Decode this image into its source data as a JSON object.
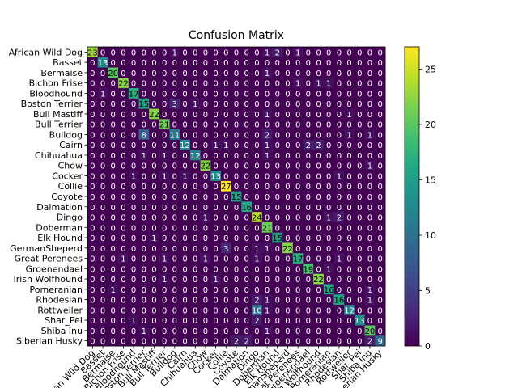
{
  "chart_data": {
    "type": "heatmap",
    "title": "Confusion Matrix",
    "xlabel": "",
    "ylabel": "",
    "colormap": "viridis",
    "vmin": 0,
    "vmax": 27,
    "colorbar_ticks": [
      0,
      5,
      10,
      15,
      20,
      25
    ],
    "labels": [
      "African Wild Dog",
      "Basset",
      "Bermaise",
      "Bichon Frise",
      "Bloodhound",
      "Boston Terrier",
      "Bull Mastiff",
      "Bull Terrier",
      "Bulldog",
      "Cairn",
      "Chihuahua",
      "Chow",
      "Cocker",
      "Collie",
      "Coyote",
      "Dalmation",
      "Dingo",
      "Doberman",
      "Elk Hound",
      "GermanSheperd",
      "Great Perenees",
      "Groenendael",
      "Irish Wolfhound",
      "Pomeranian",
      "Rhodesian",
      "Rottweiler",
      "Shar_Pei",
      "Shiba Inu",
      "Siberian Husky"
    ],
    "matrix": [
      [
        23,
        0,
        0,
        0,
        0,
        0,
        0,
        0,
        1,
        0,
        0,
        0,
        0,
        0,
        0,
        0,
        0,
        1,
        2,
        0,
        1,
        0,
        0,
        0,
        0,
        0,
        0,
        0,
        0
      ],
      [
        0,
        13,
        0,
        0,
        0,
        0,
        0,
        0,
        0,
        0,
        0,
        0,
        0,
        0,
        0,
        0,
        0,
        0,
        0,
        0,
        0,
        0,
        0,
        0,
        0,
        0,
        0,
        0,
        0
      ],
      [
        0,
        0,
        20,
        0,
        0,
        0,
        0,
        0,
        0,
        0,
        0,
        0,
        0,
        0,
        0,
        0,
        0,
        1,
        0,
        0,
        0,
        0,
        0,
        0,
        0,
        0,
        0,
        0,
        0
      ],
      [
        0,
        0,
        0,
        22,
        0,
        0,
        0,
        0,
        0,
        0,
        0,
        0,
        0,
        0,
        0,
        0,
        0,
        0,
        0,
        0,
        1,
        0,
        1,
        1,
        0,
        0,
        0,
        0,
        0
      ],
      [
        0,
        1,
        0,
        0,
        17,
        0,
        0,
        0,
        0,
        0,
        0,
        0,
        0,
        0,
        0,
        0,
        0,
        0,
        0,
        0,
        0,
        0,
        0,
        0,
        0,
        0,
        0,
        0,
        0
      ],
      [
        0,
        0,
        0,
        0,
        0,
        15,
        0,
        0,
        3,
        0,
        1,
        0,
        0,
        0,
        0,
        0,
        0,
        0,
        0,
        0,
        0,
        0,
        0,
        0,
        0,
        0,
        0,
        0,
        0
      ],
      [
        0,
        0,
        0,
        0,
        0,
        0,
        22,
        0,
        0,
        0,
        0,
        0,
        0,
        0,
        0,
        0,
        0,
        1,
        0,
        0,
        0,
        0,
        0,
        0,
        0,
        1,
        0,
        0,
        0
      ],
      [
        0,
        0,
        0,
        0,
        0,
        0,
        0,
        21,
        0,
        0,
        0,
        0,
        0,
        0,
        0,
        0,
        0,
        0,
        0,
        0,
        0,
        0,
        0,
        0,
        0,
        0,
        0,
        0,
        0
      ],
      [
        0,
        0,
        0,
        0,
        0,
        8,
        0,
        0,
        11,
        0,
        0,
        0,
        0,
        0,
        0,
        0,
        0,
        2,
        0,
        0,
        0,
        0,
        0,
        0,
        0,
        1,
        0,
        1,
        0
      ],
      [
        0,
        0,
        0,
        0,
        0,
        0,
        0,
        0,
        0,
        12,
        0,
        0,
        1,
        1,
        0,
        0,
        0,
        1,
        0,
        0,
        0,
        2,
        2,
        0,
        0,
        0,
        0,
        0,
        0
      ],
      [
        0,
        0,
        0,
        0,
        0,
        1,
        0,
        1,
        0,
        0,
        12,
        0,
        0,
        0,
        0,
        0,
        0,
        1,
        0,
        0,
        0,
        0,
        0,
        0,
        0,
        0,
        0,
        0,
        0
      ],
      [
        0,
        0,
        0,
        0,
        0,
        0,
        0,
        0,
        0,
        0,
        0,
        22,
        0,
        0,
        0,
        0,
        0,
        0,
        0,
        0,
        0,
        0,
        0,
        0,
        0,
        0,
        0,
        1,
        0
      ],
      [
        0,
        0,
        0,
        0,
        1,
        0,
        0,
        1,
        0,
        1,
        0,
        0,
        13,
        0,
        0,
        0,
        0,
        0,
        0,
        0,
        0,
        0,
        0,
        0,
        1,
        0,
        0,
        0,
        0
      ],
      [
        0,
        0,
        0,
        0,
        0,
        0,
        0,
        0,
        0,
        0,
        0,
        0,
        0,
        27,
        0,
        0,
        0,
        0,
        0,
        0,
        0,
        0,
        0,
        0,
        0,
        0,
        0,
        0,
        0
      ],
      [
        0,
        0,
        0,
        0,
        0,
        0,
        0,
        0,
        0,
        0,
        0,
        0,
        0,
        0,
        15,
        0,
        0,
        0,
        0,
        0,
        0,
        0,
        0,
        0,
        0,
        0,
        0,
        0,
        0
      ],
      [
        0,
        0,
        0,
        0,
        0,
        0,
        0,
        0,
        0,
        0,
        0,
        0,
        0,
        0,
        0,
        16,
        0,
        0,
        0,
        0,
        0,
        0,
        0,
        0,
        0,
        0,
        0,
        0,
        0
      ],
      [
        0,
        0,
        0,
        0,
        0,
        0,
        0,
        0,
        0,
        0,
        0,
        1,
        0,
        0,
        0,
        0,
        24,
        0,
        0,
        0,
        0,
        0,
        0,
        1,
        2,
        0,
        0,
        0,
        0
      ],
      [
        0,
        0,
        0,
        0,
        0,
        0,
        0,
        0,
        0,
        0,
        0,
        0,
        0,
        0,
        0,
        0,
        0,
        21,
        0,
        0,
        0,
        0,
        0,
        0,
        0,
        0,
        0,
        0,
        0
      ],
      [
        0,
        0,
        0,
        0,
        0,
        0,
        1,
        0,
        0,
        0,
        0,
        0,
        0,
        0,
        0,
        0,
        0,
        0,
        15,
        0,
        0,
        0,
        0,
        0,
        0,
        0,
        0,
        0,
        0
      ],
      [
        0,
        0,
        0,
        0,
        0,
        0,
        0,
        0,
        0,
        0,
        0,
        0,
        0,
        3,
        0,
        0,
        1,
        1,
        0,
        22,
        0,
        0,
        0,
        0,
        0,
        0,
        0,
        0,
        0
      ],
      [
        0,
        0,
        0,
        1,
        0,
        0,
        0,
        1,
        0,
        0,
        0,
        1,
        0,
        0,
        0,
        0,
        1,
        0,
        0,
        0,
        17,
        0,
        0,
        0,
        1,
        0,
        0,
        0,
        0
      ],
      [
        0,
        0,
        0,
        0,
        0,
        0,
        0,
        0,
        0,
        0,
        0,
        0,
        0,
        0,
        0,
        0,
        0,
        0,
        0,
        0,
        0,
        19,
        0,
        1,
        0,
        0,
        0,
        0,
        0
      ],
      [
        0,
        0,
        0,
        0,
        0,
        0,
        0,
        1,
        0,
        0,
        0,
        0,
        1,
        0,
        0,
        0,
        0,
        0,
        0,
        0,
        0,
        0,
        22,
        0,
        0,
        0,
        0,
        0,
        0
      ],
      [
        0,
        0,
        1,
        0,
        0,
        0,
        0,
        0,
        0,
        0,
        0,
        0,
        0,
        0,
        0,
        0,
        0,
        0,
        0,
        0,
        0,
        0,
        0,
        16,
        0,
        0,
        0,
        1,
        0
      ],
      [
        0,
        0,
        0,
        0,
        0,
        0,
        0,
        0,
        0,
        0,
        0,
        0,
        0,
        0,
        0,
        0,
        2,
        1,
        0,
        0,
        0,
        0,
        0,
        0,
        16,
        0,
        0,
        1,
        0
      ],
      [
        0,
        0,
        0,
        0,
        0,
        0,
        0,
        0,
        0,
        0,
        0,
        0,
        0,
        0,
        0,
        0,
        10,
        1,
        0,
        0,
        0,
        0,
        0,
        0,
        0,
        12,
        0,
        0,
        0
      ],
      [
        0,
        0,
        0,
        0,
        1,
        0,
        0,
        0,
        0,
        0,
        0,
        0,
        0,
        0,
        0,
        0,
        2,
        0,
        0,
        0,
        0,
        0,
        0,
        0,
        0,
        0,
        13,
        0,
        0
      ],
      [
        0,
        0,
        0,
        0,
        0,
        1,
        0,
        0,
        0,
        0,
        0,
        0,
        0,
        0,
        0,
        0,
        0,
        1,
        0,
        0,
        0,
        0,
        0,
        0,
        0,
        0,
        0,
        20,
        0
      ],
      [
        0,
        0,
        0,
        0,
        0,
        0,
        0,
        0,
        0,
        0,
        0,
        0,
        0,
        0,
        2,
        2,
        0,
        0,
        0,
        0,
        0,
        0,
        0,
        0,
        0,
        0,
        0,
        2,
        9
      ]
    ]
  }
}
